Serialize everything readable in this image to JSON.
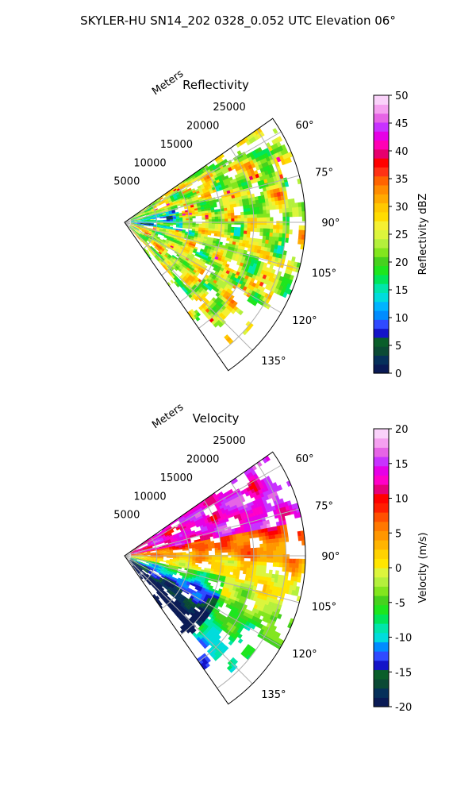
{
  "figure": {
    "title": "SKYLER-HU  SN14_202  0328_0.052 UTC Elevation 06°"
  },
  "chart_data": [
    {
      "type": "heatmap",
      "projection": "polar-sector",
      "title": "Reflectivity",
      "radial_label": "Meters",
      "radial_ticks": [
        5000,
        10000,
        15000,
        20000,
        25000
      ],
      "radial_range": [
        0,
        28000
      ],
      "azimuth_range_deg": [
        55,
        145
      ],
      "azimuth_ticks": [
        "60°",
        "75°",
        "90°",
        "105°",
        "120°",
        "135°"
      ],
      "azimuth_tick_values": [
        60,
        75,
        90,
        105,
        120,
        135
      ],
      "grid": true,
      "colorbar": {
        "label": "Reflectivity dBZ",
        "range": [
          0,
          50
        ],
        "ticks": [
          0,
          5,
          10,
          15,
          20,
          25,
          30,
          35,
          40,
          45,
          50
        ],
        "colors": [
          "#0a1a55",
          "#06305a",
          "#0b4a35",
          "#0a5e2a",
          "#1414c8",
          "#2f4aff",
          "#008cff",
          "#00b4ff",
          "#00dcdc",
          "#00e6aa",
          "#00e65a",
          "#1ee61e",
          "#46d21e",
          "#82e61e",
          "#b4f03c",
          "#dcf53c",
          "#f5f032",
          "#ffdc00",
          "#ffc800",
          "#ffaa00",
          "#ff8c00",
          "#ff6400",
          "#ff3214",
          "#ff0000",
          "#e6006e",
          "#ff00b4",
          "#e600e6",
          "#c832ff",
          "#e664e6",
          "#f5a0f0",
          "#fad2fa"
        ]
      },
      "field_summary": {
        "dominant_values": [
          20,
          30
        ],
        "local_maxima": [
          38,
          42
        ],
        "low_values_region": "near-range centre, about 10–15 dBZ"
      }
    },
    {
      "type": "heatmap",
      "projection": "polar-sector",
      "title": "Velocity",
      "radial_label": "Meters",
      "radial_ticks": [
        5000,
        10000,
        15000,
        20000,
        25000
      ],
      "radial_range": [
        0,
        28000
      ],
      "azimuth_range_deg": [
        55,
        145
      ],
      "azimuth_ticks": [
        "60°",
        "75°",
        "90°",
        "105°",
        "120°",
        "135°"
      ],
      "azimuth_tick_values": [
        60,
        75,
        90,
        105,
        120,
        135
      ],
      "grid": true,
      "colorbar": {
        "label": "Velocity (m/s)",
        "range": [
          -20,
          20
        ],
        "ticks": [
          -20,
          -15,
          -10,
          -5,
          0,
          5,
          10,
          15,
          20
        ],
        "colors": [
          "#0a1a55",
          "#06305a",
          "#0b4a35",
          "#0a5e2a",
          "#1414c8",
          "#2f4aff",
          "#008cff",
          "#00dcdc",
          "#00e6aa",
          "#00e65a",
          "#1ee61e",
          "#46d21e",
          "#82e61e",
          "#b4f03c",
          "#dcf53c",
          "#ffe600",
          "#ffd200",
          "#ffb400",
          "#ff9600",
          "#ff7800",
          "#ff5000",
          "#ff1e00",
          "#ff0000",
          "#e6007a",
          "#ff00c8",
          "#e600e6",
          "#c832ff",
          "#e664e6",
          "#f5a0f0",
          "#fad2fa"
        ]
      },
      "field_summary": {
        "north_sector_values": [
          10,
          15
        ],
        "centre_values": [
          0,
          5
        ],
        "south_sector_values": [
          -10,
          -3
        ]
      }
    }
  ]
}
